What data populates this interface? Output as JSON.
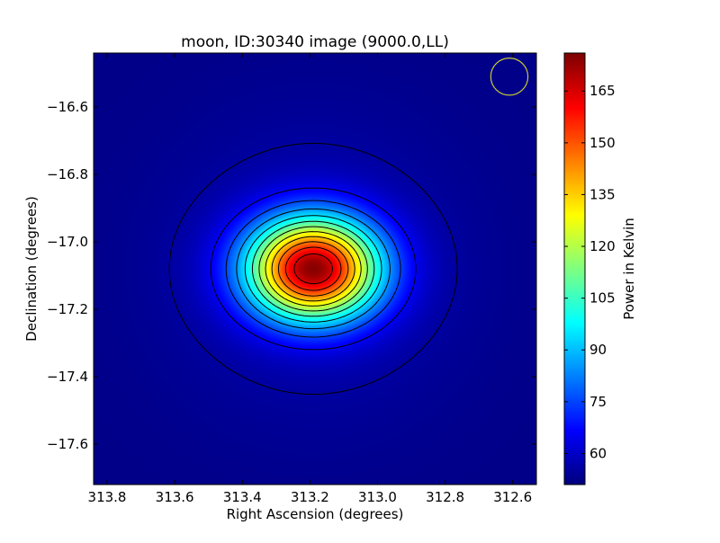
{
  "chart_data": {
    "type": "heatmap",
    "title": "moon, ID:30340 image (9000.0,LL)",
    "xlabel": "Right Ascension (degrees)",
    "ylabel": "Declination (degrees)",
    "xlim": [
      313.84,
      312.53
    ],
    "ylim": [
      -17.72,
      -16.44
    ],
    "x_ticks": [
      {
        "value": 313.8,
        "label": "313.8"
      },
      {
        "value": 313.6,
        "label": "313.6"
      },
      {
        "value": 313.4,
        "label": "313.4"
      },
      {
        "value": 313.2,
        "label": "313.2"
      },
      {
        "value": 313.0,
        "label": "313.0"
      },
      {
        "value": 312.8,
        "label": "312.8"
      },
      {
        "value": 312.6,
        "label": "312.6"
      }
    ],
    "y_ticks": [
      {
        "value": -16.6,
        "label": "−16.6"
      },
      {
        "value": -16.8,
        "label": "−16.8"
      },
      {
        "value": -17.0,
        "label": "−17.0"
      },
      {
        "value": -17.2,
        "label": "−17.2"
      },
      {
        "value": -17.4,
        "label": "−17.4"
      },
      {
        "value": -17.6,
        "label": "−17.6"
      }
    ],
    "colormap": "jet",
    "colorbar": {
      "label": "Power in Kelvin",
      "range": [
        51,
        176
      ],
      "ticks": [
        {
          "value": 60,
          "label": "60"
        },
        {
          "value": 75,
          "label": "75"
        },
        {
          "value": 90,
          "label": "90"
        },
        {
          "value": 105,
          "label": "105"
        },
        {
          "value": 120,
          "label": "120"
        },
        {
          "value": 135,
          "label": "135"
        },
        {
          "value": 150,
          "label": "150"
        },
        {
          "value": 165,
          "label": "165"
        }
      ]
    },
    "source": {
      "center_ra": 313.19,
      "center_dec": -17.08,
      "peak": 175,
      "background": 52,
      "sigma_ra": 0.135,
      "sigma_dec": 0.105,
      "halo_amplitude": 6,
      "halo_sigma_ra": 0.3,
      "halo_sigma_dec": 0.3
    },
    "contour_levels": [
      55,
      65,
      75,
      85,
      95,
      105,
      115,
      125,
      135,
      145,
      155,
      165
    ],
    "beam": {
      "ra": 312.61,
      "dec": -16.51,
      "radius_ra": 0.055,
      "radius_dec": 0.055,
      "color": "#c8c832"
    },
    "grid": false,
    "legend": "none"
  }
}
